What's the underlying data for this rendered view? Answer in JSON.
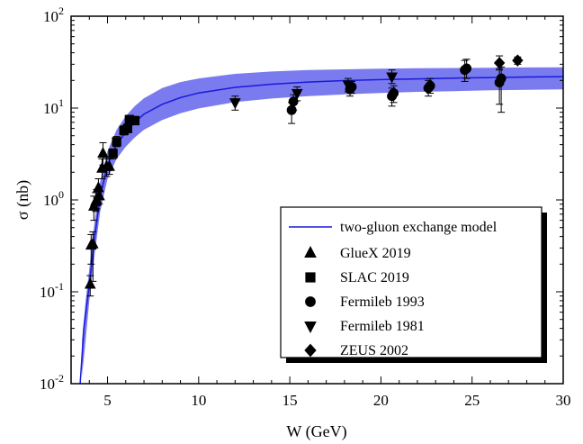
{
  "chart_data": {
    "type": "scatter",
    "xlabel": "W (GeV)",
    "ylabel": "σ (nb)",
    "xlim": [
      3,
      30
    ],
    "ylim": [
      0.01,
      100
    ],
    "yscale": "log",
    "x_ticks": [
      "5",
      "10",
      "15",
      "20",
      "25",
      "30"
    ],
    "y_ticks": [
      {
        "base": "10",
        "exp": "-2"
      },
      {
        "base": "10",
        "exp": "-1"
      },
      {
        "base": "10",
        "exp": "0"
      },
      {
        "base": "10",
        "exp": "1"
      },
      {
        "base": "10",
        "exp": "2"
      }
    ],
    "legend_position": "bottom-right",
    "colors": {
      "model": "#1a1adb",
      "band": "#7b7bf0",
      "points": "#000000"
    },
    "model": {
      "name": "two-gluon exchange model",
      "curve": [
        [
          3.5,
          0.01
        ],
        [
          3.7,
          0.04
        ],
        [
          4.0,
          0.12
        ],
        [
          4.3,
          0.4
        ],
        [
          4.6,
          1.1
        ],
        [
          5.0,
          2.4
        ],
        [
          5.5,
          4.0
        ],
        [
          6.0,
          5.5
        ],
        [
          6.5,
          7.0
        ],
        [
          7.0,
          8.6
        ],
        [
          8.0,
          11.0
        ],
        [
          9.0,
          13.0
        ],
        [
          10.0,
          14.6
        ],
        [
          12.0,
          16.8
        ],
        [
          14.0,
          18.2
        ],
        [
          16.0,
          19.2
        ],
        [
          18.0,
          19.9
        ],
        [
          20.0,
          20.4
        ],
        [
          22.0,
          20.8
        ],
        [
          24.0,
          21.2
        ],
        [
          26.0,
          21.5
        ],
        [
          28.0,
          21.8
        ],
        [
          30.0,
          22.0
        ]
      ],
      "band_upper": [
        [
          3.6,
          0.03
        ],
        [
          3.8,
          0.08
        ],
        [
          4.0,
          0.18
        ],
        [
          4.3,
          0.6
        ],
        [
          4.6,
          1.6
        ],
        [
          5.0,
          3.4
        ],
        [
          5.5,
          5.8
        ],
        [
          6.0,
          8.2
        ],
        [
          6.5,
          10.5
        ],
        [
          7.0,
          12.8
        ],
        [
          8.0,
          16.5
        ],
        [
          9.0,
          19.2
        ],
        [
          10.0,
          21.0
        ],
        [
          12.0,
          23.6
        ],
        [
          14.0,
          25.0
        ],
        [
          16.0,
          25.9
        ],
        [
          18.0,
          26.4
        ],
        [
          20.0,
          26.8
        ],
        [
          22.0,
          27.1
        ],
        [
          24.0,
          27.3
        ],
        [
          26.0,
          27.5
        ],
        [
          28.0,
          27.7
        ],
        [
          30.0,
          27.8
        ]
      ],
      "band_lower": [
        [
          3.6,
          0.012
        ],
        [
          3.8,
          0.03
        ],
        [
          4.0,
          0.08
        ],
        [
          4.3,
          0.26
        ],
        [
          4.6,
          0.75
        ],
        [
          5.0,
          1.7
        ],
        [
          5.5,
          2.8
        ],
        [
          6.0,
          3.8
        ],
        [
          6.5,
          4.8
        ],
        [
          7.0,
          5.8
        ],
        [
          8.0,
          7.4
        ],
        [
          9.0,
          8.8
        ],
        [
          10.0,
          9.9
        ],
        [
          12.0,
          11.6
        ],
        [
          14.0,
          12.7
        ],
        [
          16.0,
          13.5
        ],
        [
          18.0,
          14.1
        ],
        [
          20.0,
          14.6
        ],
        [
          22.0,
          15.0
        ],
        [
          24.0,
          15.3
        ],
        [
          26.0,
          15.6
        ],
        [
          28.0,
          15.8
        ],
        [
          30.0,
          16.0
        ]
      ]
    },
    "series": [
      {
        "name": "GlueX 2019",
        "marker": "triangle-up",
        "points": [
          {
            "x": 4.05,
            "y": 0.12,
            "lo": 0.09,
            "hi": 0.15
          },
          {
            "x": 4.1,
            "y": 0.32,
            "lo": 0.2,
            "hi": 0.42
          },
          {
            "x": 4.2,
            "y": 0.33,
            "lo": 0.13,
            "hi": 0.45
          },
          {
            "x": 4.25,
            "y": 0.85,
            "lo": 0.6,
            "hi": 1.1
          },
          {
            "x": 4.35,
            "y": 0.95,
            "lo": 0.75,
            "hi": 1.2
          },
          {
            "x": 4.4,
            "y": 1.0,
            "lo": 0.8,
            "hi": 1.3
          },
          {
            "x": 4.5,
            "y": 1.35,
            "lo": 1.05,
            "hi": 1.7
          },
          {
            "x": 4.55,
            "y": 1.1,
            "lo": 0.9,
            "hi": 1.4
          },
          {
            "x": 4.7,
            "y": 2.2,
            "lo": 1.7,
            "hi": 2.8
          },
          {
            "x": 4.75,
            "y": 3.2,
            "lo": 2.4,
            "hi": 4.2
          },
          {
            "x": 4.95,
            "y": 2.3,
            "lo": 1.8,
            "hi": 2.9
          },
          {
            "x": 5.1,
            "y": 2.3,
            "lo": 1.9,
            "hi": 2.8
          }
        ]
      },
      {
        "name": "SLAC 2019",
        "marker": "square",
        "points": [
          {
            "x": 5.3,
            "y": 3.2,
            "lo": 2.8,
            "hi": 3.6
          },
          {
            "x": 5.5,
            "y": 4.3,
            "lo": 3.8,
            "hi": 4.9
          },
          {
            "x": 5.9,
            "y": 5.7,
            "lo": 5.1,
            "hi": 6.4
          },
          {
            "x": 6.1,
            "y": 6.0,
            "lo": 5.4,
            "hi": 6.7
          },
          {
            "x": 6.2,
            "y": 7.5,
            "lo": 6.8,
            "hi": 8.3
          },
          {
            "x": 6.5,
            "y": 7.3,
            "lo": 6.6,
            "hi": 8.1
          }
        ]
      },
      {
        "name": "Fermileb 1993",
        "marker": "circle",
        "points": [
          {
            "x": 15.1,
            "y": 9.5,
            "lo": 6.8,
            "hi": 11.5
          },
          {
            "x": 15.2,
            "y": 11.8,
            "lo": 9.5,
            "hi": 14.0
          },
          {
            "x": 18.3,
            "y": 16.0,
            "lo": 13.5,
            "hi": 18.5
          },
          {
            "x": 18.4,
            "y": 17.0,
            "lo": 14.5,
            "hi": 19.5
          },
          {
            "x": 20.6,
            "y": 13.5,
            "lo": 10.5,
            "hi": 16.5
          },
          {
            "x": 20.7,
            "y": 14.5,
            "lo": 11.5,
            "hi": 17.5
          },
          {
            "x": 22.6,
            "y": 16.5,
            "lo": 13.5,
            "hi": 20.0
          },
          {
            "x": 22.7,
            "y": 17.5,
            "lo": 14.5,
            "hi": 21.0
          },
          {
            "x": 24.6,
            "y": 26.0,
            "lo": 19.5,
            "hi": 33.0
          },
          {
            "x": 24.7,
            "y": 27.0,
            "lo": 21.0,
            "hi": 34.0
          },
          {
            "x": 26.5,
            "y": 19.0,
            "lo": 11.0,
            "hi": 27.0
          },
          {
            "x": 26.6,
            "y": 21.0,
            "lo": 9.0,
            "hi": 28.0
          }
        ]
      },
      {
        "name": "Fermileb 1981",
        "marker": "triangle-down",
        "points": [
          {
            "x": 12.0,
            "y": 11.5,
            "lo": 9.5,
            "hi": 13.5
          },
          {
            "x": 15.4,
            "y": 14.5,
            "lo": 12.0,
            "hi": 17.0
          },
          {
            "x": 18.2,
            "y": 18.0,
            "lo": 15.0,
            "hi": 21.0
          },
          {
            "x": 20.6,
            "y": 22.0,
            "lo": 18.5,
            "hi": 26.0
          }
        ]
      },
      {
        "name": "ZEUS 2002",
        "marker": "diamond",
        "points": [
          {
            "x": 26.5,
            "y": 31.0,
            "lo": 26.0,
            "hi": 37.0
          },
          {
            "x": 27.5,
            "y": 33.0,
            "lo": 30.0,
            "hi": 36.0
          }
        ]
      }
    ]
  }
}
